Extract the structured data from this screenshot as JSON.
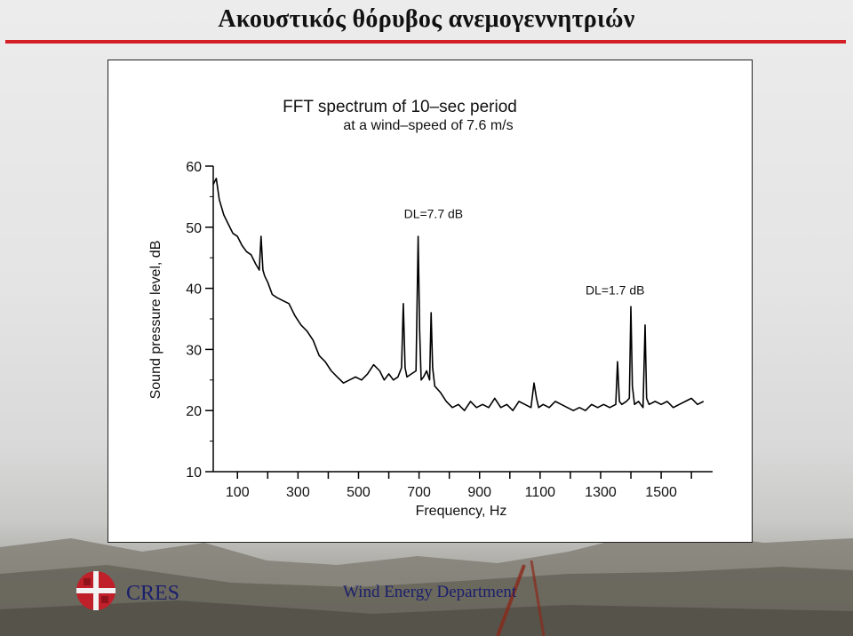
{
  "slide": {
    "title": "Ακουστικός θόρυβος ανεμογεννητριών",
    "footer_brand": "CRES",
    "footer_department": "Wind Energy Department",
    "accent_color": "#d51f26",
    "brand_color": "#1a1f6b"
  },
  "chart_data": {
    "type": "line",
    "title": "FFT spectrum of 10–sec period",
    "subtitle": "at a wind–speed of 7.6 m/s",
    "xlabel": "Frequency, Hz",
    "ylabel": "Sound pressure level, dB",
    "xlim": [
      20,
      1670
    ],
    "ylim": [
      10,
      60
    ],
    "x_ticks": [
      100,
      300,
      500,
      700,
      900,
      1100,
      1300,
      1500
    ],
    "x_tick_labels": [
      "100",
      "300",
      "500",
      "700",
      "900",
      "1100",
      "1300",
      "1500"
    ],
    "y_ticks": [
      10,
      20,
      30,
      40,
      50,
      60
    ],
    "y_tick_labels": [
      "10",
      "20",
      "30",
      "40",
      "50",
      "60"
    ],
    "grid": false,
    "annotations": [
      {
        "text": "DL=7.7 dB",
        "x": 650,
        "y": 51.5
      },
      {
        "text": "DL=1.7 dB",
        "x": 1250,
        "y": 39
      }
    ],
    "series": [
      {
        "color": "#000000",
        "x": [
          20,
          30,
          40,
          55,
          70,
          85,
          100,
          115,
          130,
          145,
          160,
          172,
          178,
          184,
          190,
          200,
          215,
          230,
          250,
          270,
          290,
          310,
          330,
          350,
          370,
          390,
          410,
          430,
          450,
          470,
          490,
          510,
          530,
          550,
          570,
          585,
          600,
          615,
          630,
          642,
          648,
          654,
          660,
          675,
          690,
          697,
          702,
          707,
          715,
          725,
          735,
          740,
          745,
          752,
          770,
          790,
          810,
          830,
          850,
          870,
          890,
          910,
          930,
          950,
          970,
          990,
          1010,
          1030,
          1050,
          1070,
          1080,
          1088,
          1095,
          1110,
          1130,
          1150,
          1170,
          1190,
          1210,
          1230,
          1250,
          1270,
          1290,
          1310,
          1330,
          1350,
          1356,
          1362,
          1370,
          1385,
          1395,
          1400,
          1405,
          1412,
          1425,
          1440,
          1447,
          1452,
          1460,
          1480,
          1500,
          1520,
          1540,
          1560,
          1580,
          1600,
          1620,
          1640
        ],
        "y": [
          57,
          58,
          54.5,
          52,
          50.5,
          49,
          48.5,
          47,
          46,
          45.5,
          44,
          43,
          48.5,
          43,
          42,
          41,
          39,
          38.5,
          38,
          37.5,
          35.5,
          34,
          33,
          31.5,
          29,
          28,
          26.5,
          25.5,
          24.5,
          25,
          25.5,
          25,
          26,
          27.5,
          26.5,
          25,
          26,
          25,
          25.5,
          27,
          37.5,
          27,
          25.5,
          26,
          26.5,
          48.5,
          33,
          25,
          25.5,
          26.5,
          25,
          36,
          27,
          24,
          23,
          21.5,
          20.5,
          21,
          20,
          21.5,
          20.5,
          21,
          20.5,
          22,
          20.5,
          21,
          20,
          21.5,
          21,
          20.5,
          24.5,
          22,
          20.5,
          21,
          20.5,
          21.5,
          21,
          20.5,
          20,
          20.5,
          20,
          21,
          20.5,
          21,
          20.5,
          21,
          28,
          21.5,
          21,
          21.5,
          22,
          37,
          24,
          21,
          21.5,
          20.5,
          34,
          22,
          21,
          21.5,
          21,
          21.5,
          20.5,
          21,
          21.5,
          22,
          21,
          21.5
        ]
      }
    ]
  }
}
